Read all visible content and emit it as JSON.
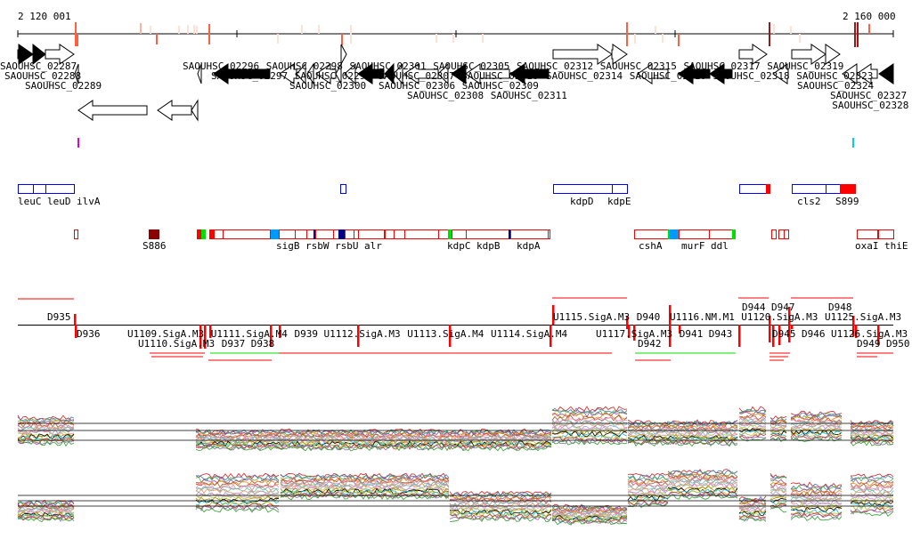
{
  "ruler": {
    "start_label": "2 120 001",
    "end_label": "2 160 000"
  },
  "genes": {
    "labels": [
      "SAOUHSC_02287",
      "SAOUHSC_02288",
      "SAOUHSC_02289",
      "SAOUHSC_02296",
      "SAOUHSC_02297",
      "SAOUHSC_02298",
      "SAOUHSC_02300",
      "SAOUHSC_02299",
      "SAOUHSC_02301",
      "SAOUHSC_02306",
      "SAOUHSC_02305",
      "SAOUHSC_02308",
      "SAOUHSC_02307",
      "SAOUHSC_02309",
      "SAOUHSC_02310",
      "SAOUHSC_02311",
      "SAOUHSC_02312",
      "SAOUHSC_02314",
      "SAOUHSC_02315",
      "SAOUHSC_02316",
      "SAOUHSC_02317",
      "SAOUHSC_02318",
      "SAOUHSC_02319",
      "SAOUHSC_02323",
      "SAOUHSC_02324",
      "SAOUHSC_02327",
      "SAOUHSC_02328"
    ]
  },
  "operons_top": {
    "labels": [
      "leuC",
      "leuD",
      "ilvA",
      "kdpD",
      "kdpE",
      "cls2",
      "S899"
    ]
  },
  "operons_bottom": {
    "labels": [
      "S886",
      "sigB",
      "rsbW",
      "rsbU",
      "alr",
      "kdpC",
      "kdpB",
      "kdpA",
      "cshA",
      "murF",
      "ddl",
      "oxaI",
      "thiE"
    ]
  },
  "segments": {
    "labels": [
      "D935",
      "D936",
      "U1109.SigA.M3",
      "U1110.SigA.M3",
      "U1111.SigA.M4",
      "D937",
      "D938",
      "D939",
      "U1112.SigA.M3",
      "U1113.SigA.M4",
      "U1114.SigA.M4",
      "U1115.SigA.M3",
      "D940",
      "U1116.NM.M1",
      "U1117.SigA.M3",
      "D941",
      "D942",
      "D943",
      "U1120.SigA.M3",
      "D944",
      "D947",
      "U1125.SigA.M3",
      "D948",
      "D945",
      "D946",
      "U1126.SigA.M3",
      "D949",
      "D950"
    ]
  },
  "colors": {
    "red": "#ff0000",
    "blue": "#0000ff",
    "darkred": "#8b0000",
    "green": "#00e000",
    "cyan": "#0099ff",
    "navy": "#000080",
    "magenta": "#e000e0"
  }
}
